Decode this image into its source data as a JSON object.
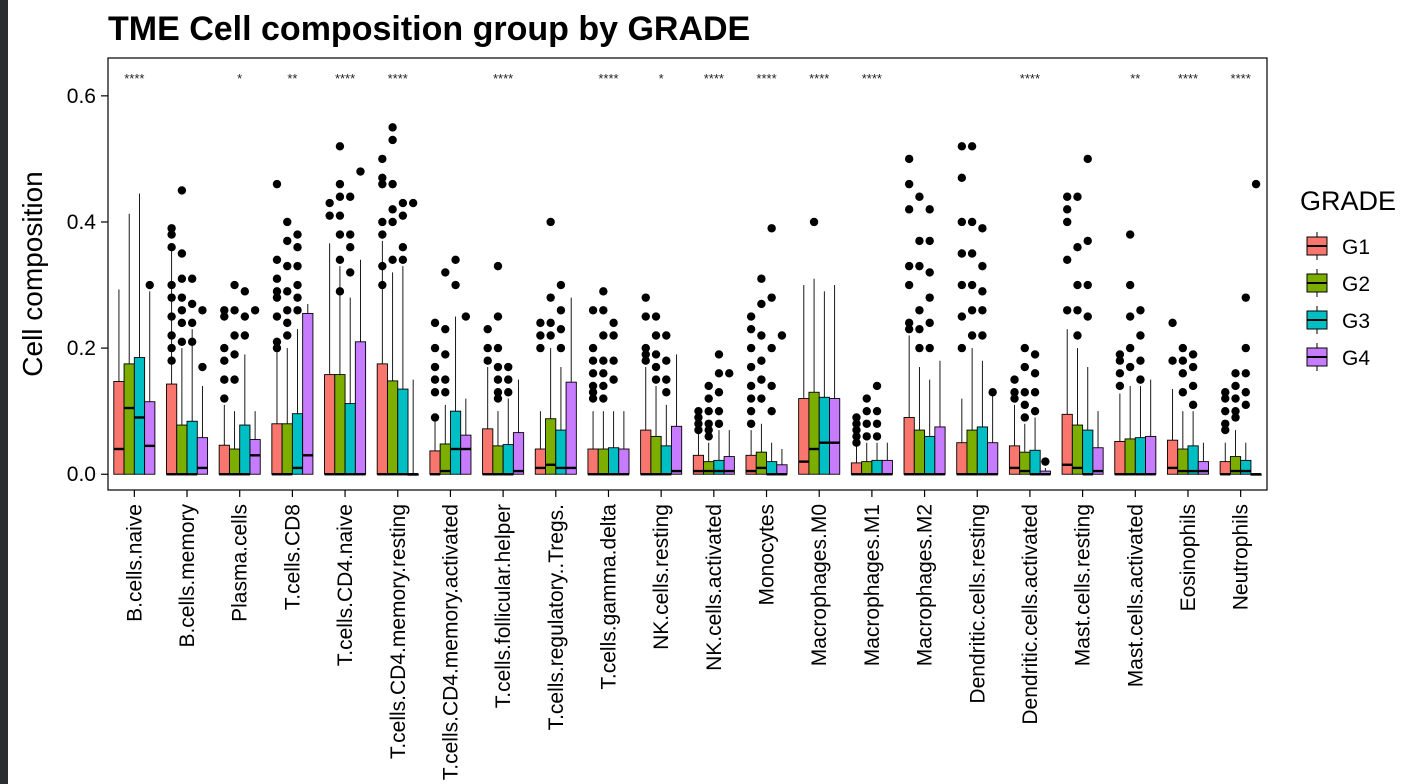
{
  "chart_data": {
    "type": "box",
    "title": "TME Cell composition group by GRADE",
    "ylabel": "Cell composition",
    "xlabel": "",
    "ylim": [
      -0.025,
      0.66
    ],
    "yticks": [
      "0.0",
      "0.2",
      "0.4",
      "0.6"
    ],
    "grid": false,
    "legend": {
      "title": "GRADE",
      "position": "right",
      "groups": [
        "G1",
        "G2",
        "G3",
        "G4"
      ]
    },
    "colors": {
      "G1": "#F8766D",
      "G2": "#7CAE00",
      "G3": "#00BFC4",
      "G4": "#C77CFF"
    },
    "categories": [
      "B.cells.naive",
      "B.cells.memory",
      "Plasma.cells",
      "T.cells.CD8",
      "T.cells.CD4.naive",
      "T.cells.CD4.memory.resting",
      "T.cells.CD4.memory.activated",
      "T.cells.follicular.helper",
      "T.cells.regulatory..Tregs.",
      "T.cells.gamma.delta",
      "NK.cells.resting",
      "NK.cells.activated",
      "Monocytes",
      "Macrophages.M0",
      "Macrophages.M1",
      "Macrophages.M2",
      "Dendritic.cells.resting",
      "Dendritic.cells.activated",
      "Mast.cells.resting",
      "Mast.cells.activated",
      "Eosinophils",
      "Neutrophils"
    ],
    "significance": [
      "****",
      "",
      "*",
      "**",
      "****",
      "****",
      "",
      "****",
      "",
      "****",
      "*",
      "****",
      "****",
      "****",
      "****",
      "",
      "",
      "****",
      "",
      "**",
      "****",
      "****"
    ],
    "series": [
      {
        "name": "G1",
        "q1": [
          0.0,
          0.0,
          0.0,
          0.0,
          0.0,
          0.0,
          0.0,
          0.0,
          0.0,
          0.0,
          0.0,
          0.0,
          0.0,
          0.0,
          0.0,
          0.0,
          0.0,
          0.0,
          0.0,
          0.0,
          0.0,
          0.0
        ],
        "median": [
          0.04,
          0.0,
          0.0,
          0.0,
          0.0,
          0.0,
          0.0,
          0.0,
          0.01,
          0.0,
          0.0,
          0.005,
          0.005,
          0.02,
          0.0,
          0.0,
          0.0,
          0.01,
          0.015,
          0.0,
          0.01,
          0.0
        ],
        "q3": [
          0.147,
          0.143,
          0.046,
          0.08,
          0.158,
          0.175,
          0.037,
          0.072,
          0.04,
          0.04,
          0.07,
          0.03,
          0.03,
          0.12,
          0.018,
          0.09,
          0.05,
          0.045,
          0.095,
          0.052,
          0.054,
          0.02
        ],
        "whisker_high": [
          0.293,
          0.355,
          0.11,
          0.2,
          0.366,
          0.37,
          0.093,
          0.17,
          0.1,
          0.1,
          0.17,
          0.08,
          0.07,
          0.3,
          0.045,
          0.22,
          0.12,
          0.11,
          0.23,
          0.128,
          0.135,
          0.05
        ],
        "outliers": [
          [],
          [
            0.39,
            0.38,
            0.36,
            0.3,
            0.28,
            0.25,
            0.22,
            0.2,
            0.18
          ],
          [
            0.26,
            0.25,
            0.2,
            0.18,
            0.15,
            0.12
          ],
          [
            0.46,
            0.34,
            0.31,
            0.29,
            0.28,
            0.25,
            0.21,
            0.2
          ],
          [
            0.43,
            0.41
          ],
          [
            0.5,
            0.47,
            0.46,
            0.4,
            0.38,
            0.33,
            0.3
          ],
          [
            0.24,
            0.2,
            0.17,
            0.15,
            0.13,
            0.09
          ],
          [
            0.23,
            0.2,
            0.18
          ],
          [
            0.24,
            0.22,
            0.2
          ],
          [
            0.26,
            0.2,
            0.18,
            0.16,
            0.14,
            0.13,
            0.12
          ],
          [
            0.28,
            0.25,
            0.2,
            0.19,
            0.18
          ],
          [
            0.1,
            0.09,
            0.08,
            0.07
          ],
          [
            0.25,
            0.23,
            0.2,
            0.17,
            0.14,
            0.12,
            0.1,
            0.08
          ],
          [],
          [
            0.09,
            0.08,
            0.07,
            0.06,
            0.05
          ],
          [
            0.5,
            0.46,
            0.42,
            0.33,
            0.3,
            0.24,
            0.23
          ],
          [
            0.52,
            0.47,
            0.4,
            0.35,
            0.3,
            0.25,
            0.2
          ],
          [
            0.15,
            0.13,
            0.12
          ],
          [
            0.44,
            0.42,
            0.4,
            0.34,
            0.26
          ],
          [
            0.19,
            0.18,
            0.16,
            0.14
          ],
          [
            0.24,
            0.18
          ],
          [
            0.13,
            0.12,
            0.1,
            0.08,
            0.07
          ]
        ]
      },
      {
        "name": "G2",
        "q1": [
          0.0,
          0.0,
          0.0,
          0.0,
          0.0,
          0.0,
          0.0,
          0.0,
          0.0,
          0.0,
          0.0,
          0.0,
          0.0,
          0.0,
          0.0,
          0.0,
          0.0,
          0.0,
          0.0,
          0.0,
          0.0,
          0.0
        ],
        "median": [
          0.105,
          0.0,
          0.0,
          0.0,
          0.0,
          0.0,
          0.005,
          0.0,
          0.015,
          0.0,
          0.0,
          0.005,
          0.01,
          0.04,
          0.0,
          0.0,
          0.0,
          0.005,
          0.01,
          0.0,
          0.005,
          0.005
        ],
        "q3": [
          0.175,
          0.078,
          0.04,
          0.08,
          0.158,
          0.148,
          0.048,
          0.045,
          0.088,
          0.04,
          0.06,
          0.02,
          0.035,
          0.13,
          0.02,
          0.07,
          0.07,
          0.035,
          0.078,
          0.056,
          0.04,
          0.028
        ],
        "whisker_high": [
          0.413,
          0.2,
          0.1,
          0.2,
          0.33,
          0.32,
          0.11,
          0.1,
          0.2,
          0.1,
          0.14,
          0.05,
          0.08,
          0.31,
          0.05,
          0.17,
          0.2,
          0.08,
          0.2,
          0.14,
          0.1,
          0.07
        ],
        "outliers": [
          [],
          [
            0.45,
            0.35,
            0.31,
            0.28,
            0.26,
            0.24,
            0.21
          ],
          [
            0.3,
            0.26,
            0.22,
            0.19,
            0.15
          ],
          [
            0.4,
            0.37,
            0.33,
            0.29,
            0.26,
            0.24,
            0.22
          ],
          [
            0.52,
            0.46,
            0.44,
            0.41,
            0.38,
            0.34,
            0.29
          ],
          [
            0.55,
            0.53,
            0.46,
            0.42,
            0.4,
            0.34
          ],
          [
            0.32,
            0.23,
            0.19,
            0.15,
            0.13
          ],
          [
            0.33,
            0.25,
            0.2,
            0.17,
            0.15,
            0.13,
            0.12
          ],
          [
            0.4,
            0.28,
            0.24,
            0.22
          ],
          [
            0.29,
            0.26,
            0.22,
            0.18,
            0.16,
            0.14,
            0.12
          ],
          [
            0.25,
            0.22,
            0.19,
            0.17,
            0.15
          ],
          [
            0.14,
            0.12,
            0.1,
            0.08,
            0.07,
            0.06
          ],
          [
            0.31,
            0.27,
            0.22,
            0.18,
            0.15,
            0.12
          ],
          [
            0.4
          ],
          [
            0.12,
            0.1,
            0.08,
            0.06
          ],
          [
            0.44,
            0.37,
            0.33,
            0.26,
            0.23,
            0.2
          ],
          [
            0.52,
            0.4,
            0.35,
            0.3,
            0.26,
            0.22
          ],
          [
            0.2,
            0.17,
            0.13,
            0.11,
            0.09
          ],
          [
            0.44,
            0.36,
            0.3,
            0.26,
            0.22
          ],
          [
            0.38,
            0.3,
            0.25,
            0.2,
            0.17
          ],
          [
            0.2,
            0.18,
            0.16,
            0.13
          ],
          [
            0.16,
            0.14,
            0.12,
            0.1,
            0.09
          ]
        ]
      },
      {
        "name": "G3",
        "q1": [
          0.0,
          0.0,
          0.0,
          0.0,
          0.0,
          0.0,
          0.0,
          0.0,
          0.0,
          0.0,
          0.0,
          0.0,
          0.0,
          0.0,
          0.0,
          0.0,
          0.0,
          0.0,
          0.0,
          0.0,
          0.0,
          0.0
        ],
        "median": [
          0.09,
          0.0,
          0.0,
          0.01,
          0.0,
          0.0,
          0.04,
          0.0,
          0.01,
          0.0,
          0.0,
          0.005,
          0.0,
          0.05,
          0.0,
          0.0,
          0.0,
          0.0,
          0.0,
          0.0,
          0.005,
          0.005
        ],
        "q3": [
          0.185,
          0.084,
          0.078,
          0.096,
          0.112,
          0.135,
          0.1,
          0.047,
          0.07,
          0.042,
          0.045,
          0.022,
          0.02,
          0.122,
          0.022,
          0.06,
          0.075,
          0.038,
          0.07,
          0.058,
          0.045,
          0.022
        ],
        "whisker_high": [
          0.445,
          0.23,
          0.19,
          0.23,
          0.28,
          0.33,
          0.25,
          0.12,
          0.17,
          0.1,
          0.11,
          0.07,
          0.05,
          0.29,
          0.05,
          0.15,
          0.18,
          0.09,
          0.17,
          0.14,
          0.1,
          0.05
        ],
        "outliers": [
          [],
          [
            0.31,
            0.27,
            0.24,
            0.21
          ],
          [
            0.29,
            0.25,
            0.22
          ],
          [
            0.38,
            0.36,
            0.33,
            0.3,
            0.28,
            0.26
          ],
          [
            0.44,
            0.38,
            0.36,
            0.32
          ],
          [
            0.43,
            0.41,
            0.36,
            0.34
          ],
          [
            0.34,
            0.3
          ],
          [
            0.17,
            0.15,
            0.13
          ],
          [
            0.3,
            0.26,
            0.23,
            0.2
          ],
          [
            0.24,
            0.22,
            0.18,
            0.15
          ],
          [
            0.22,
            0.18,
            0.15,
            0.13
          ],
          [
            0.19,
            0.16,
            0.13,
            0.1,
            0.08
          ],
          [
            0.39,
            0.28,
            0.2,
            0.14,
            0.1
          ],
          [],
          [
            0.14,
            0.1,
            0.08,
            0.06
          ],
          [
            0.42,
            0.37,
            0.32,
            0.28,
            0.24,
            0.2
          ],
          [
            0.39,
            0.33,
            0.29,
            0.26,
            0.22
          ],
          [
            0.19,
            0.16,
            0.13,
            0.1
          ],
          [
            0.5,
            0.37,
            0.3,
            0.25
          ],
          [
            0.26,
            0.22,
            0.18,
            0.15
          ],
          [
            0.19,
            0.17,
            0.14,
            0.11
          ],
          [
            0.28,
            0.2,
            0.16,
            0.13,
            0.11
          ]
        ]
      },
      {
        "name": "G4",
        "q1": [
          0.0,
          0.0,
          0.0,
          0.0,
          0.0,
          0.0,
          0.0,
          0.0,
          0.0,
          0.0,
          0.0,
          0.0,
          0.0,
          0.0,
          0.0,
          0.0,
          0.0,
          0.0,
          0.0,
          0.0,
          0.0,
          0.0
        ],
        "median": [
          0.045,
          0.01,
          0.03,
          0.03,
          0.0,
          0.0,
          0.04,
          0.005,
          0.01,
          0.0,
          0.005,
          0.005,
          0.0,
          0.05,
          0.0,
          0.0,
          0.0,
          0.0,
          0.005,
          0.0,
          0.005,
          0.0
        ],
        "q3": [
          0.115,
          0.058,
          0.055,
          0.255,
          0.21,
          0.0,
          0.062,
          0.066,
          0.146,
          0.04,
          0.076,
          0.028,
          0.015,
          0.12,
          0.022,
          0.075,
          0.05,
          0.005,
          0.042,
          0.06,
          0.02,
          0.0
        ],
        "whisker_high": [
          0.29,
          0.14,
          0.1,
          0.27,
          0.34,
          0.15,
          0.12,
          0.15,
          0.28,
          0.1,
          0.19,
          0.07,
          0.04,
          0.3,
          0.05,
          0.18,
          0.13,
          0.01,
          0.1,
          0.15,
          0.05,
          0.0
        ],
        "outliers": [
          [
            0.3
          ],
          [
            0.26,
            0.17
          ],
          [
            0.26
          ],
          [],
          [
            0.48
          ],
          [
            0.43
          ],
          [
            0.25
          ],
          [],
          [],
          [],
          [],
          [
            0.16
          ],
          [
            0.22
          ],
          [],
          [],
          [],
          [
            0.13
          ],
          [
            0.02
          ],
          [],
          [],
          [],
          [
            0.46
          ]
        ]
      }
    ]
  }
}
